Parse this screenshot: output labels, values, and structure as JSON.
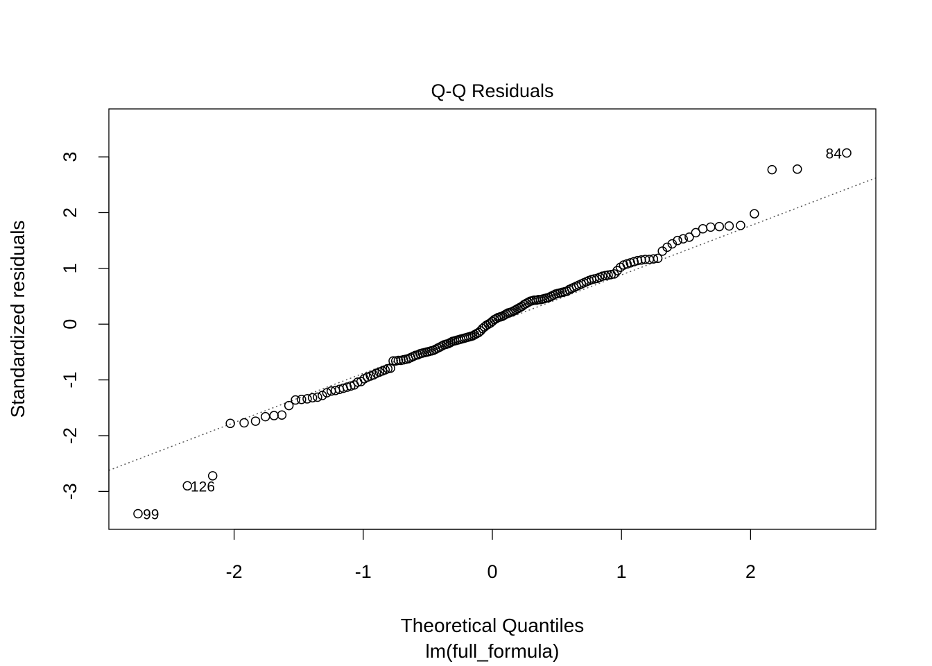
{
  "chart_data": {
    "type": "scatter",
    "title": "Q-Q Residuals",
    "xlabel": "Theoretical Quantiles",
    "subtitle": "lm(full_formula)",
    "ylabel": "Standardized residuals",
    "xlim": [
      -2.97,
      2.97
    ],
    "ylim": [
      -3.68,
      3.86
    ],
    "x_ticks": [
      -2,
      -1,
      0,
      1,
      2
    ],
    "x_tick_labels": [
      "-2",
      "-1",
      "0",
      "1",
      "2"
    ],
    "y_ticks": [
      -3,
      -2,
      -1,
      0,
      1,
      2,
      3
    ],
    "y_tick_labels": [
      "-3",
      "-2",
      "-1",
      "0",
      "1",
      "2",
      "3"
    ],
    "grid": false,
    "legend": "none",
    "reference_line": {
      "style": "dotted",
      "color": "#555555",
      "slope": 0.883,
      "intercept": 0.0
    },
    "marker": "open-circle",
    "annotations": [
      {
        "label": "84",
        "x": 2.76,
        "y": 3.07,
        "side": "left"
      },
      {
        "label": "126",
        "x": -2.39,
        "y": -2.9,
        "side": "right"
      },
      {
        "label": "99",
        "x": -2.76,
        "y": -3.4,
        "side": "right"
      }
    ],
    "y_values": [
      -3.4,
      -2.9,
      -2.72,
      -1.78,
      -1.77,
      -1.74,
      -1.66,
      -1.64,
      -1.63,
      -1.46,
      -1.36,
      -1.35,
      -1.34,
      -1.32,
      -1.31,
      -1.28,
      -1.23,
      -1.2,
      -1.19,
      -1.17,
      -1.15,
      -1.13,
      -1.11,
      -1.09,
      -1.04,
      -1.03,
      -0.98,
      -0.95,
      -0.93,
      -0.91,
      -0.88,
      -0.86,
      -0.84,
      -0.82,
      -0.8,
      -0.79,
      -0.66,
      -0.66,
      -0.65,
      -0.65,
      -0.64,
      -0.63,
      -0.62,
      -0.6,
      -0.58,
      -0.56,
      -0.55,
      -0.53,
      -0.52,
      -0.51,
      -0.5,
      -0.49,
      -0.48,
      -0.47,
      -0.45,
      -0.43,
      -0.41,
      -0.39,
      -0.37,
      -0.36,
      -0.35,
      -0.33,
      -0.31,
      -0.3,
      -0.29,
      -0.28,
      -0.27,
      -0.26,
      -0.25,
      -0.24,
      -0.23,
      -0.22,
      -0.21,
      -0.19,
      -0.17,
      -0.15,
      -0.12,
      -0.08,
      -0.05,
      -0.02,
      0.0,
      0.02,
      0.05,
      0.08,
      0.1,
      0.12,
      0.13,
      0.14,
      0.16,
      0.18,
      0.2,
      0.21,
      0.22,
      0.24,
      0.26,
      0.28,
      0.3,
      0.32,
      0.35,
      0.37,
      0.39,
      0.41,
      0.42,
      0.43,
      0.43,
      0.44,
      0.44,
      0.45,
      0.46,
      0.47,
      0.48,
      0.5,
      0.52,
      0.54,
      0.55,
      0.56,
      0.57,
      0.58,
      0.59,
      0.62,
      0.64,
      0.66,
      0.68,
      0.7,
      0.72,
      0.74,
      0.76,
      0.78,
      0.8,
      0.81,
      0.82,
      0.84,
      0.86,
      0.87,
      0.88,
      0.89,
      0.9,
      0.96,
      1.02,
      1.06,
      1.08,
      1.1,
      1.12,
      1.14,
      1.15,
      1.16,
      1.16,
      1.17,
      1.18,
      1.31,
      1.38,
      1.44,
      1.5,
      1.53,
      1.56,
      1.64,
      1.71,
      1.74,
      1.75,
      1.76,
      1.77,
      1.98,
      2.77,
      2.78,
      3.07
    ]
  }
}
